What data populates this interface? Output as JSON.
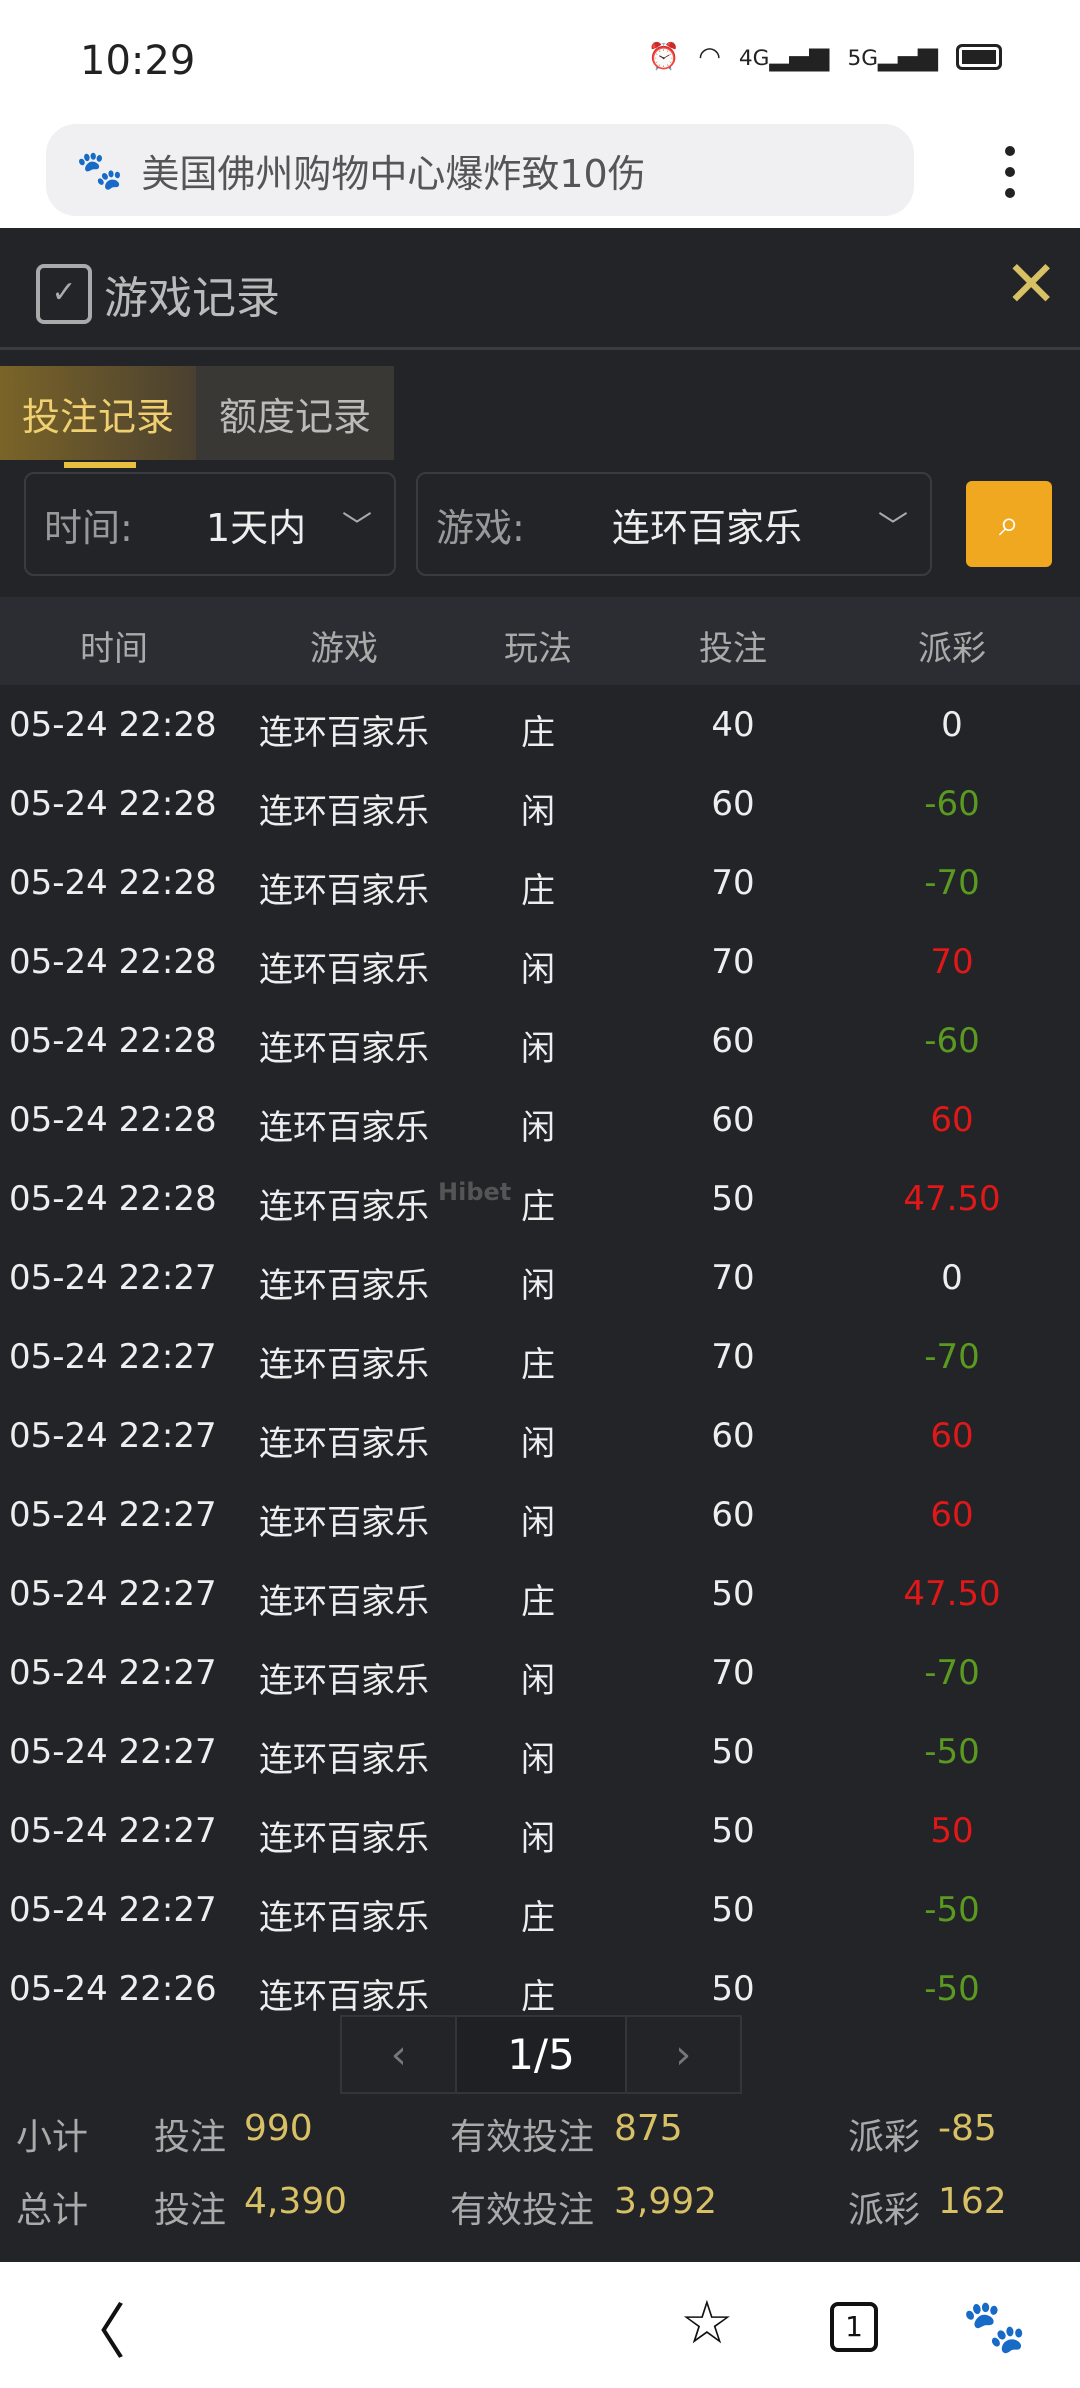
{
  "status_bar": {
    "time": "10:29",
    "icons": [
      "alarm-icon",
      "wifi-icon",
      "4g-signal-icon",
      "5g-signal-icon",
      "battery-icon"
    ],
    "net1": "4G",
    "net2": "5G"
  },
  "browser": {
    "query": "美国佛州购物中心爆炸致10伤",
    "logo": "baidu-paw-icon",
    "tab_count": "1"
  },
  "panel": {
    "title": "游戏记录",
    "tabs": [
      {
        "label": "投注记录",
        "active": true
      },
      {
        "label": "额度记录",
        "active": false
      }
    ],
    "filters": {
      "time_label": "时间:",
      "time_value": "1天内",
      "game_label": "游戏:",
      "game_value": "连环百家乐"
    },
    "accent": "#f0a820"
  },
  "table": {
    "headers": [
      "时间",
      "游戏",
      "玩法",
      "投注",
      "派彩"
    ],
    "rows": [
      [
        "05-24 22:28",
        "连环百家乐",
        "庄",
        "40",
        "0"
      ],
      [
        "05-24 22:28",
        "连环百家乐",
        "闲",
        "60",
        "-60"
      ],
      [
        "05-24 22:28",
        "连环百家乐",
        "庄",
        "70",
        "-70"
      ],
      [
        "05-24 22:28",
        "连环百家乐",
        "闲",
        "70",
        "70"
      ],
      [
        "05-24 22:28",
        "连环百家乐",
        "闲",
        "60",
        "-60"
      ],
      [
        "05-24 22:28",
        "连环百家乐",
        "闲",
        "60",
        "60"
      ],
      [
        "05-24 22:28",
        "连环百家乐",
        "庄",
        "50",
        "47.50"
      ],
      [
        "05-24 22:27",
        "连环百家乐",
        "闲",
        "70",
        "0"
      ],
      [
        "05-24 22:27",
        "连环百家乐",
        "庄",
        "70",
        "-70"
      ],
      [
        "05-24 22:27",
        "连环百家乐",
        "闲",
        "60",
        "60"
      ],
      [
        "05-24 22:27",
        "连环百家乐",
        "闲",
        "60",
        "60"
      ],
      [
        "05-24 22:27",
        "连环百家乐",
        "庄",
        "50",
        "47.50"
      ],
      [
        "05-24 22:27",
        "连环百家乐",
        "闲",
        "70",
        "-70"
      ],
      [
        "05-24 22:27",
        "连环百家乐",
        "闲",
        "50",
        "-50"
      ],
      [
        "05-24 22:27",
        "连环百家乐",
        "闲",
        "50",
        "50"
      ],
      [
        "05-24 22:27",
        "连环百家乐",
        "庄",
        "50",
        "-50"
      ],
      [
        "05-24 22:26",
        "连环百家乐",
        "庄",
        "50",
        "-50"
      ]
    ],
    "win_color": "#e01818",
    "loss_color": "#5a9a20"
  },
  "watermark": "Hibet",
  "pagination": {
    "prev": "‹",
    "page": "1/5",
    "next": "›"
  },
  "summary": {
    "subtotal": {
      "label": "小计",
      "bet_label": "投注",
      "bet": "990",
      "valid_label": "有效投注",
      "valid": "875",
      "payout_label": "派彩",
      "payout": "-85"
    },
    "total": {
      "label": "总计",
      "bet_label": "投注",
      "bet": "4,390",
      "valid_label": "有效投注",
      "valid": "3,992",
      "payout_label": "派彩",
      "payout": "162"
    }
  }
}
